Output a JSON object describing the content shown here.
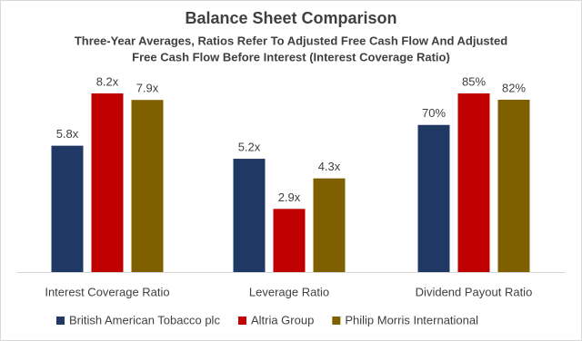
{
  "chart_data": {
    "type": "bar",
    "title": "Balance Sheet Comparison",
    "subtitle": [
      "Three-Year Averages, Ratios Refer To Adjusted Free Cash Flow And Adjusted",
      "Free Cash Flow Before Interest (Interest Coverage Ratio)"
    ],
    "categories": [
      "Interest Coverage Ratio",
      "Leverage Ratio",
      "Dividend Payout Ratio"
    ],
    "series": [
      {
        "name": "British American Tobacco plc",
        "color": "#1f3864",
        "values": [
          5.8,
          5.2,
          70
        ],
        "value_labels": [
          "5.8x",
          "5.2x",
          "70%"
        ]
      },
      {
        "name": "Altria Group",
        "color": "#c00000",
        "values": [
          8.2,
          2.9,
          85
        ],
        "value_labels": [
          "8.2x",
          "2.9x",
          "85%"
        ]
      },
      {
        "name": "Philip Morris International",
        "color": "#7f6000",
        "values": [
          7.9,
          4.3,
          82
        ],
        "value_labels": [
          "7.9x",
          "4.3x",
          "82%"
        ]
      }
    ],
    "legend": "bottom"
  }
}
